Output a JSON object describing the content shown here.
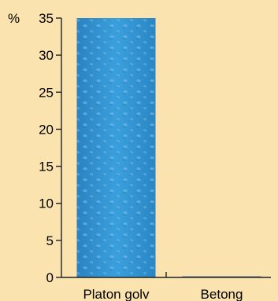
{
  "chart_data": {
    "type": "bar",
    "categories": [
      "Platon golv",
      "Betong"
    ],
    "values": [
      35,
      0.2
    ],
    "ylabel": "%",
    "ylim": [
      0,
      35
    ],
    "yticks": [
      0,
      5,
      10,
      15,
      20,
      25,
      30,
      35
    ],
    "grid": false,
    "legend": "none",
    "colors": {
      "background": "#fbe3b0",
      "axis": "#222222",
      "bar_primary": "#2f92d0",
      "bar_primary_light": "#4aa9e0",
      "bar_primary_dark": "#2a83c0",
      "bar_secondary": "#a9a9a9",
      "text": "#000000"
    }
  }
}
